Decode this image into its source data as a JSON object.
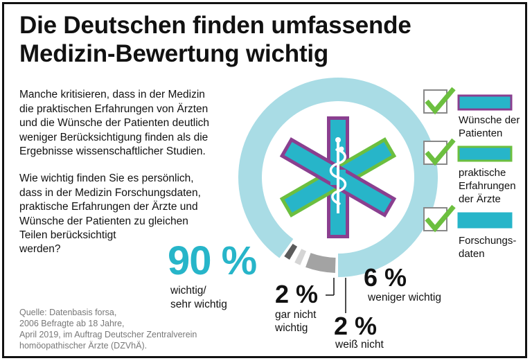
{
  "title": {
    "line1": "Die Deutschen finden umfassende",
    "line2": "Medizin-Bewertung wichtig"
  },
  "intro": {
    "lines": [
      "Manche kritisieren, dass in der Medizin",
      "die praktischen Erfahrungen von Ärzten",
      "und die Wünsche der Patienten deutlich",
      "weniger Berücksichtigung finden als die",
      "Ergebnisse wissenschaftlicher Studien."
    ]
  },
  "question": {
    "lines": [
      "Wie wichtig finden Sie es persönlich,",
      "dass in der Medizin Forschungsdaten,",
      "praktische Erfahrungen der Ärzte und",
      "Wünsche der Patienten zu gleichen",
      "Teilen berücksichtigt"
    ],
    "last": "werden?"
  },
  "legend": [
    {
      "lines": [
        "Wünsche der",
        "Patienten"
      ],
      "bar_color": "#27b5c9",
      "border_color": "#8a3f8f"
    },
    {
      "lines": [
        "praktische",
        "Erfahrungen",
        "der Ärzte"
      ],
      "bar_color": "#27b5c9",
      "border_color": "#6cbf3f"
    },
    {
      "lines": [
        "Forschungs-",
        "daten"
      ],
      "bar_color": "#27b5c9",
      "border_color": "#27b5c9"
    }
  ],
  "labels": {
    "wichtig": {
      "pct": "90 %",
      "lines": [
        "wichtig/",
        "sehr wichtig"
      ]
    },
    "weniger": {
      "pct": "6 %",
      "lines": [
        "weniger wichtig"
      ]
    },
    "gar_nicht": {
      "pct": "2 %",
      "lines": [
        "gar nicht",
        "wichtig"
      ]
    },
    "weiss_nicht": {
      "pct": "2 %",
      "lines": [
        "weiß nicht"
      ]
    }
  },
  "source": {
    "lines": [
      "Quelle: Datenbasis forsa,",
      "2006 Befragte ab 18 Jahre,",
      "April 2019, im Auftrag Deutscher Zentralverein",
      "homöopathischer Ärzte (DZVhÄ)."
    ]
  },
  "colors": {
    "wichtig": "#a9dce5",
    "weniger": "#a3a3a3",
    "weiss_nicht": "#d5d5d5",
    "gar_nicht": "#5b5b5b",
    "accent": "#27b5c9",
    "purple": "#8a3f8f",
    "green": "#6cbf3f"
  },
  "chart_data": {
    "type": "pie",
    "donut": true,
    "categories": [
      "wichtig/ sehr wichtig",
      "weniger wichtig",
      "weiß nicht",
      "gar nicht wichtig"
    ],
    "values": [
      90,
      6,
      2,
      2
    ]
  }
}
